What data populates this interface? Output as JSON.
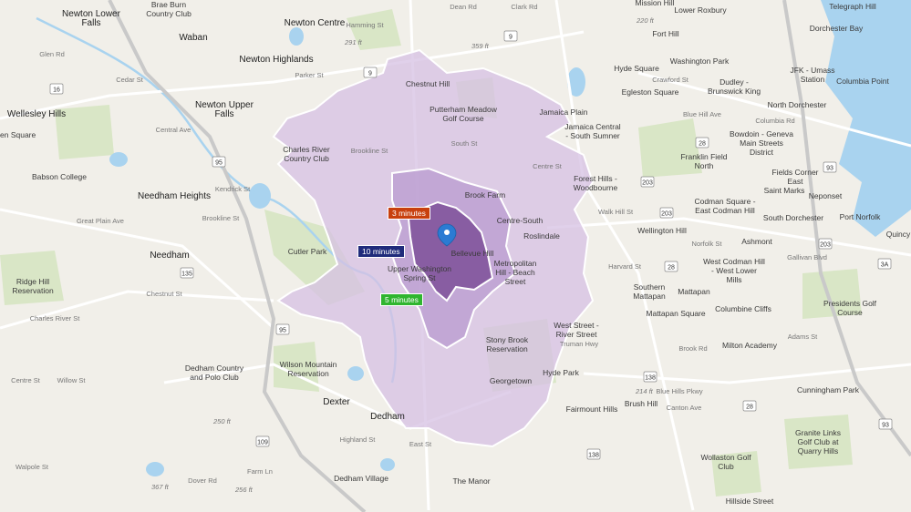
{
  "map": {
    "colors": {
      "background": "#f1efe9",
      "park": "#d9e6c6",
      "water": "#a9d3ef",
      "road": "#ffffff",
      "highway": "#c9c9c9",
      "isochrone_10": "#d6c0e3",
      "isochrone_5": "#bc9dd1",
      "isochrone_3": "#85589f",
      "pin": "#2b7bd3"
    },
    "pin_icon": "map-pin-icon",
    "isochrones": [
      {
        "label": "10 minutes",
        "minutes": 10,
        "color": "#1f2b7b"
      },
      {
        "label": "5 minutes",
        "minutes": 5,
        "color": "#2fb52f"
      },
      {
        "label": "3 minutes",
        "minutes": 3,
        "color": "#c8400e"
      }
    ],
    "places": [
      "Newton Lower Falls",
      "Brae Burn Country Club",
      "Newton Centre",
      "Waban",
      "Newton Highlands",
      "Newton Upper Falls",
      "Wellesley Hills",
      "Babson College",
      "Needham Heights",
      "Needham",
      "Ridge Hill Reservation",
      "Cutler Park",
      "Charles River Country Club",
      "Chestnut Hill",
      "Putterham Meadow Golf Course",
      "Brook Farm",
      "Centre-South",
      "Roslindale",
      "Bellevue Hill",
      "Metropolitan Hill - Beach Street",
      "Upper Washington Spring St",
      "Stony Brook Reservation",
      "Hyde Park",
      "Georgetown",
      "West Street - River Street",
      "Dedham Country and Polo Club",
      "Wilson Mountain Reservation",
      "Dexter",
      "Dedham",
      "Dedham Village",
      "The Manor",
      "Fairmount Hills",
      "Brush Hill",
      "Mission Hill",
      "Lower Roxbury",
      "Telegraph Hill",
      "Fort Hill",
      "Dorchester Bay",
      "Washington Park",
      "Dudley - Brunswick King",
      "Hyde Square",
      "Egleston Square",
      "JFK - Umass Station",
      "Columbia Point",
      "North Dorchester",
      "Jamaica Plain",
      "Jamaica Central - South Sumner",
      "Bowdoin - Geneva Main Streets District",
      "Fields Corner East",
      "Forest Hills - Woodbourne",
      "Franklin Field North",
      "Codman Square - East Codman Hill",
      "Saint Marks",
      "Neponset",
      "South Dorchester",
      "Port Norfolk",
      "Wellington Hill",
      "Ashmont",
      "West Codman Hill - West Lower Mills",
      "Southern Mattapan",
      "Mattapan",
      "Mattapan Square",
      "Columbine Cliffs",
      "Presidents Golf Course",
      "Milton Academy",
      "Cunningham Park",
      "Granite Links Golf Club at Quarry Hills",
      "Wollaston Golf Club",
      "Hillside Street",
      "Quincy",
      "en Square"
    ],
    "streets": [
      "Glen Rd",
      "Cedar St",
      "Central Ave",
      "Kendrick St",
      "Great Plain Ave",
      "Brookline St",
      "Chestnut St",
      "Charles River St",
      "Centre St",
      "Willow St",
      "Hamming St",
      "Dean Rd",
      "Clark Rd",
      "Parker St",
      "Brookline St",
      "South St",
      "Centre St",
      "Walk Hill St",
      "Norfolk St",
      "Harvard St",
      "Blue Hill Ave",
      "Gallivan Blvd",
      "Brook Rd",
      "Adams St",
      "Truman Hwy",
      "Blue Hills Pkwy",
      "Canton Ave",
      "Columbia Rd",
      "Crawford St",
      "East St",
      "Farm Ln",
      "Dover Rd",
      "Walpole St",
      "Highland St"
    ],
    "elevations": [
      "291 ft",
      "359 ft",
      "220 ft",
      "214 ft",
      "250 ft",
      "367 ft",
      "256 ft"
    ],
    "route_shields": [
      "9",
      "9",
      "16",
      "95",
      "95",
      "135",
      "109",
      "28",
      "28",
      "28",
      "203",
      "203",
      "203",
      "138",
      "138",
      "93",
      "93",
      "3A"
    ]
  }
}
